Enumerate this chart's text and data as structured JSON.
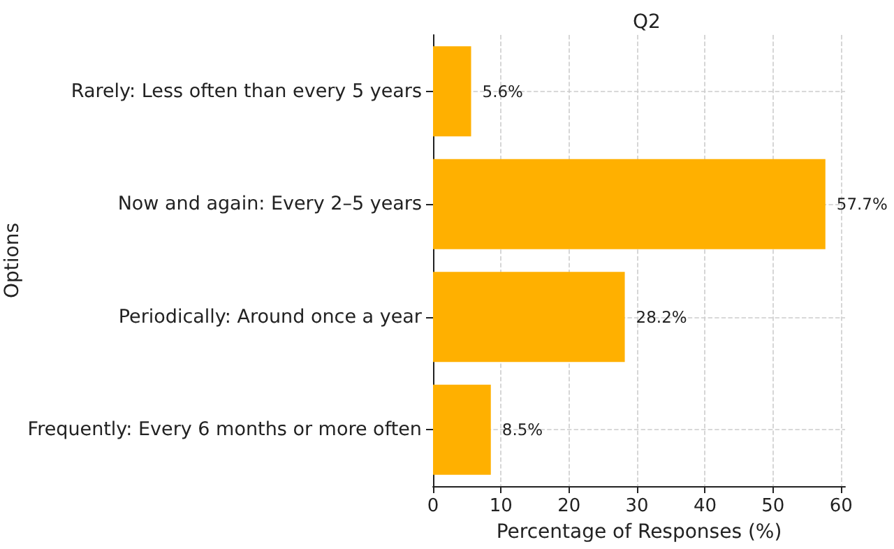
{
  "chart_data": {
    "type": "bar",
    "orientation": "horizontal",
    "title": "Q2",
    "xlabel": "Percentage of Responses (%)",
    "ylabel": "Options",
    "categories": [
      "Rarely: Less often than every 5 years",
      "Now and again: Every 2–5 years",
      "Periodically: Around once a year",
      "Frequently: Every 6 months or more often"
    ],
    "values": [
      5.6,
      57.7,
      28.2,
      8.5
    ],
    "value_labels": [
      "5.6%",
      "57.7%",
      "28.2%",
      "8.5%"
    ],
    "color": "#ffb000",
    "xlim": [
      0,
      60.6
    ],
    "xticks": [
      0,
      10,
      20,
      30,
      40,
      50,
      60
    ],
    "grid": true
  }
}
